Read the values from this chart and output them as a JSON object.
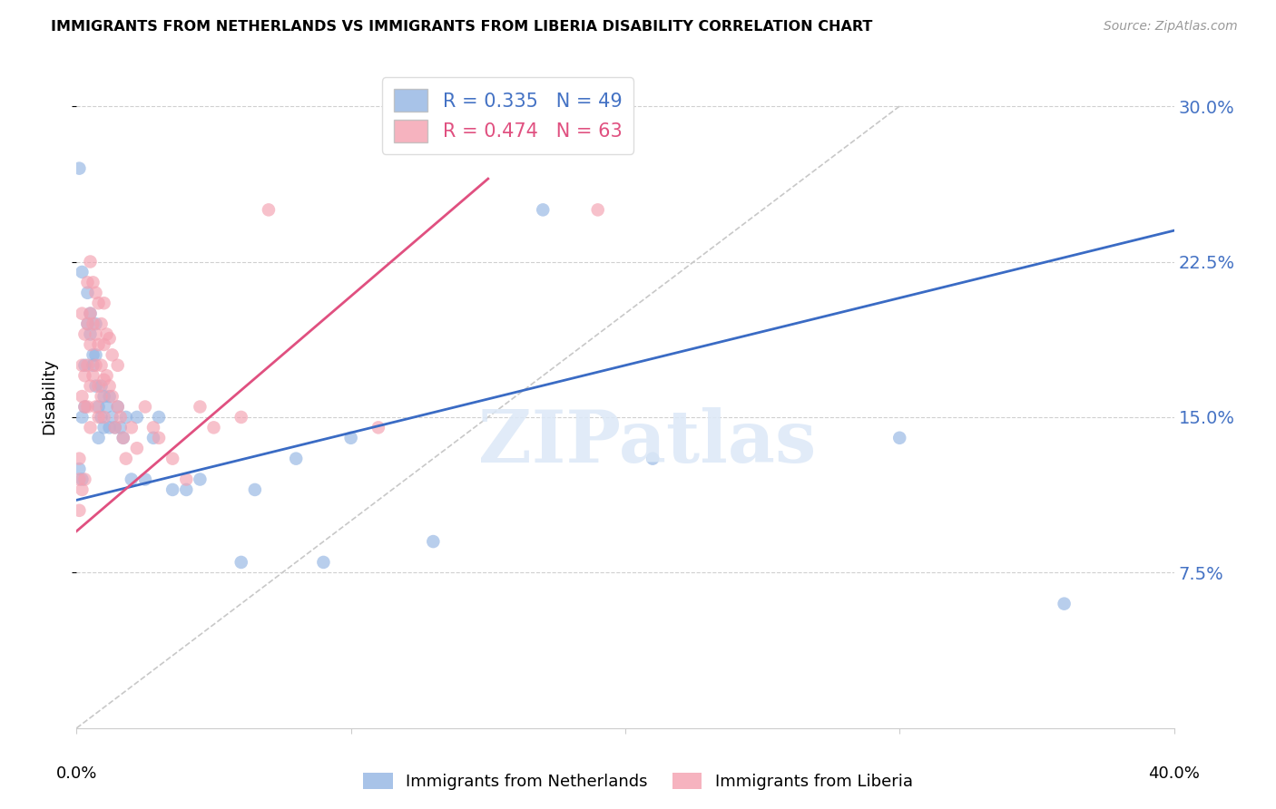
{
  "title": "IMMIGRANTS FROM NETHERLANDS VS IMMIGRANTS FROM LIBERIA DISABILITY CORRELATION CHART",
  "source": "Source: ZipAtlas.com",
  "ylabel": "Disability",
  "ytick_labels": [
    "7.5%",
    "15.0%",
    "22.5%",
    "30.0%"
  ],
  "ytick_values": [
    0.075,
    0.15,
    0.225,
    0.3
  ],
  "xlim": [
    0.0,
    0.4
  ],
  "ylim": [
    0.0,
    0.32
  ],
  "color_netherlands": "#92b4e3",
  "color_liberia": "#f4a0b0",
  "trendline_netherlands": "#3a6bc4",
  "trendline_liberia": "#e05080",
  "diagonal_color": "#c8c8c8",
  "watermark_text": "ZIPatlas",
  "nl_trendline_x0": 0.0,
  "nl_trendline_y0": 0.11,
  "nl_trendline_x1": 0.4,
  "nl_trendline_y1": 0.24,
  "lib_trendline_x0": 0.0,
  "lib_trendline_y0": 0.095,
  "lib_trendline_x1": 0.15,
  "lib_trendline_y1": 0.265,
  "netherlands_x": [
    0.001,
    0.001,
    0.002,
    0.002,
    0.002,
    0.003,
    0.003,
    0.004,
    0.004,
    0.005,
    0.005,
    0.006,
    0.006,
    0.007,
    0.007,
    0.007,
    0.008,
    0.008,
    0.009,
    0.009,
    0.01,
    0.01,
    0.011,
    0.012,
    0.012,
    0.013,
    0.014,
    0.015,
    0.016,
    0.017,
    0.018,
    0.02,
    0.022,
    0.025,
    0.028,
    0.03,
    0.035,
    0.04,
    0.045,
    0.06,
    0.065,
    0.08,
    0.09,
    0.1,
    0.13,
    0.17,
    0.21,
    0.3,
    0.36
  ],
  "netherlands_y": [
    0.27,
    0.125,
    0.22,
    0.15,
    0.12,
    0.175,
    0.155,
    0.21,
    0.195,
    0.2,
    0.19,
    0.18,
    0.175,
    0.195,
    0.18,
    0.165,
    0.155,
    0.14,
    0.165,
    0.15,
    0.16,
    0.145,
    0.155,
    0.16,
    0.145,
    0.15,
    0.145,
    0.155,
    0.145,
    0.14,
    0.15,
    0.12,
    0.15,
    0.12,
    0.14,
    0.15,
    0.115,
    0.115,
    0.12,
    0.08,
    0.115,
    0.13,
    0.08,
    0.14,
    0.09,
    0.25,
    0.13,
    0.14,
    0.06
  ],
  "liberia_x": [
    0.001,
    0.001,
    0.001,
    0.002,
    0.002,
    0.002,
    0.002,
    0.003,
    0.003,
    0.003,
    0.003,
    0.004,
    0.004,
    0.004,
    0.004,
    0.005,
    0.005,
    0.005,
    0.005,
    0.005,
    0.006,
    0.006,
    0.006,
    0.007,
    0.007,
    0.007,
    0.007,
    0.008,
    0.008,
    0.008,
    0.008,
    0.009,
    0.009,
    0.009,
    0.01,
    0.01,
    0.01,
    0.01,
    0.011,
    0.011,
    0.012,
    0.012,
    0.013,
    0.013,
    0.014,
    0.015,
    0.015,
    0.016,
    0.017,
    0.018,
    0.02,
    0.022,
    0.025,
    0.028,
    0.03,
    0.035,
    0.04,
    0.045,
    0.05,
    0.06,
    0.07,
    0.11,
    0.19
  ],
  "liberia_y": [
    0.13,
    0.12,
    0.105,
    0.2,
    0.175,
    0.16,
    0.115,
    0.19,
    0.17,
    0.155,
    0.12,
    0.215,
    0.195,
    0.175,
    0.155,
    0.225,
    0.2,
    0.185,
    0.165,
    0.145,
    0.215,
    0.195,
    0.17,
    0.21,
    0.19,
    0.175,
    0.155,
    0.205,
    0.185,
    0.165,
    0.15,
    0.195,
    0.175,
    0.16,
    0.205,
    0.185,
    0.168,
    0.15,
    0.19,
    0.17,
    0.188,
    0.165,
    0.18,
    0.16,
    0.145,
    0.175,
    0.155,
    0.15,
    0.14,
    0.13,
    0.145,
    0.135,
    0.155,
    0.145,
    0.14,
    0.13,
    0.12,
    0.155,
    0.145,
    0.15,
    0.25,
    0.145,
    0.25
  ]
}
